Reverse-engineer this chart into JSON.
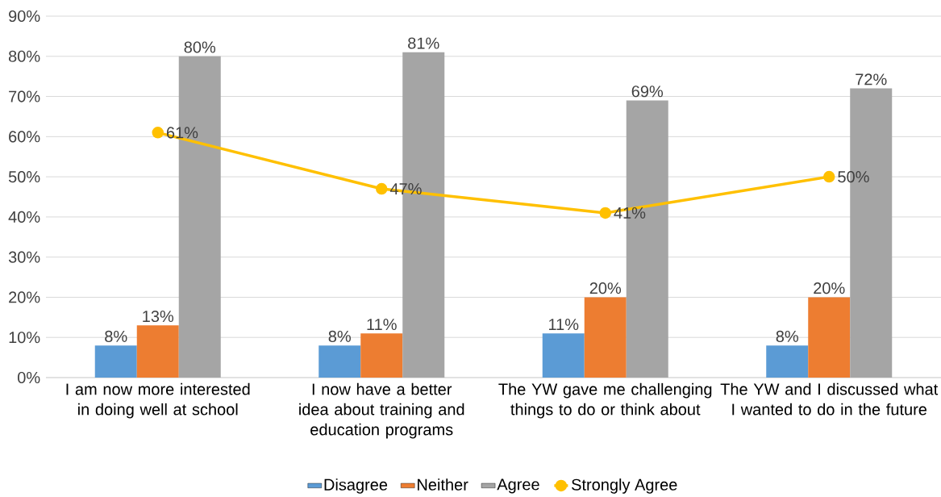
{
  "chart_data": {
    "type": "bar",
    "categories": [
      "I am now more interested in doing well at school",
      "I now have a better idea about training and education programs",
      "The YW gave me challenging things to do or think about",
      "The YW and I discussed what I wanted to do in the future"
    ],
    "series": [
      {
        "name": "Disagree",
        "color": "#5b9bd5",
        "values": [
          8,
          8,
          11,
          8
        ],
        "value_labels": [
          "8%",
          "8%",
          "11%",
          "8%"
        ]
      },
      {
        "name": "Neither",
        "color": "#ed7d31",
        "values": [
          13,
          11,
          20,
          20
        ],
        "value_labels": [
          "13%",
          "11%",
          "20%",
          "20%"
        ]
      },
      {
        "name": "Agree",
        "color": "#a5a5a5",
        "values": [
          80,
          81,
          69,
          72
        ],
        "value_labels": [
          "80%",
          "81%",
          "69%",
          "72%"
        ]
      },
      {
        "name": "Strongly Agree",
        "type": "line",
        "color": "#ffc000",
        "marker": "circle",
        "values": [
          61,
          47,
          41,
          50
        ],
        "value_labels": [
          "61%",
          "47%",
          "41%",
          "50%"
        ]
      }
    ],
    "ylim": [
      0,
      90
    ],
    "yticks": [
      {
        "value": 0,
        "label": "0%"
      },
      {
        "value": 10,
        "label": "10%"
      },
      {
        "value": 20,
        "label": "20%"
      },
      {
        "value": 30,
        "label": "30%"
      },
      {
        "value": 40,
        "label": "40%"
      },
      {
        "value": 50,
        "label": "50%"
      },
      {
        "value": 60,
        "label": "60%"
      },
      {
        "value": 70,
        "label": "70%"
      },
      {
        "value": 80,
        "label": "80%"
      },
      {
        "value": 90,
        "label": "90%"
      }
    ],
    "grid": "y",
    "legend": "bottom"
  }
}
